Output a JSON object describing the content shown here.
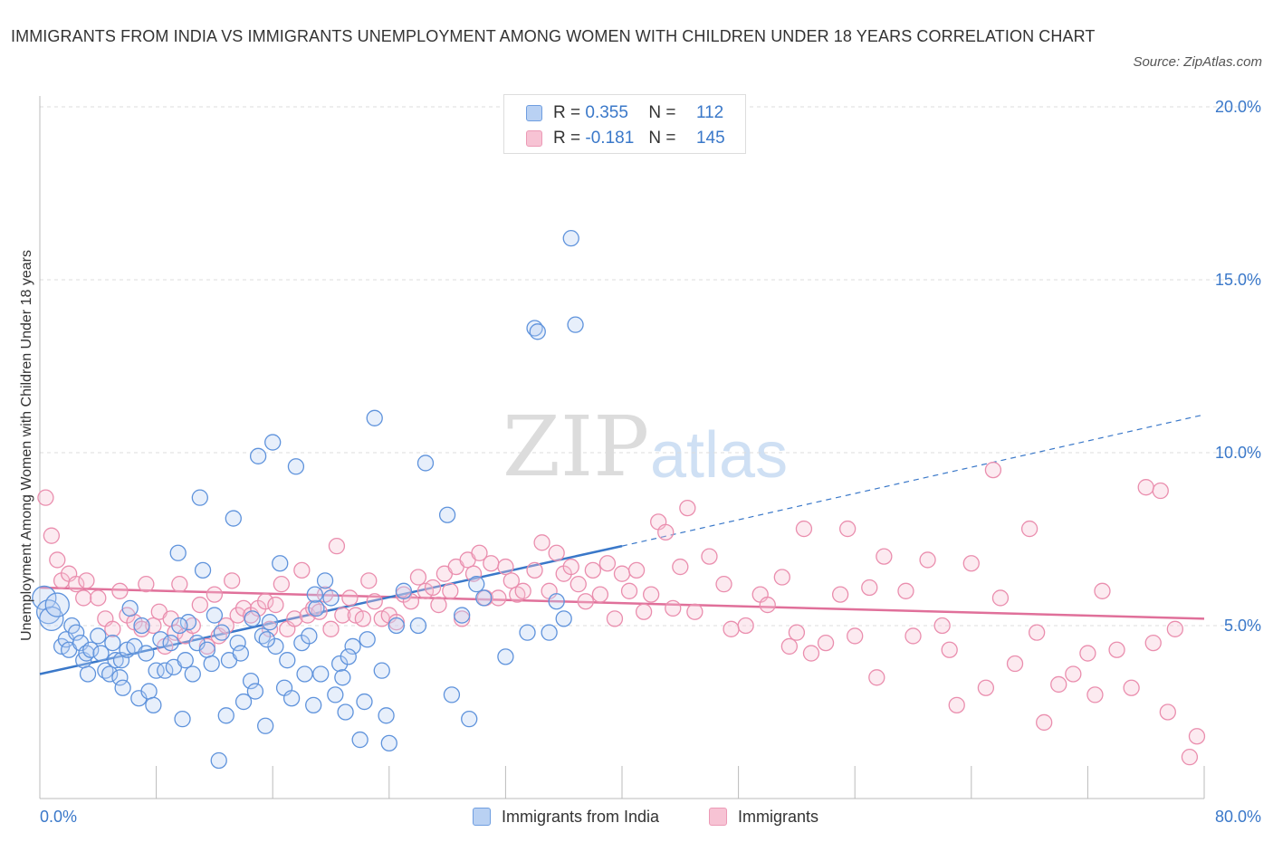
{
  "title": "IMMIGRANTS FROM INDIA VS IMMIGRANTS UNEMPLOYMENT AMONG WOMEN WITH CHILDREN UNDER 18 YEARS CORRELATION CHART",
  "source": "Source: ZipAtlas.com",
  "watermark": {
    "zip": "ZIP",
    "atlas": "atlas"
  },
  "colors": {
    "blue": "#3a78c9",
    "blue_fill": "#b9d1f3",
    "pink": "#e0709a",
    "pink_fill": "#f7c3d4"
  },
  "chart_data": {
    "type": "scatter",
    "ylabel": "Unemployment Among Women with Children Under 18 years",
    "xlim": [
      0,
      80
    ],
    "ylim": [
      0,
      20
    ],
    "x_tick_labels": {
      "left": "0.0%",
      "right": "80.0%"
    },
    "y_ticks": [
      5,
      10,
      15,
      20
    ],
    "y_tick_labels": [
      "5.0%",
      "10.0%",
      "15.0%",
      "20.0%"
    ],
    "legend": {
      "placement": "top-center",
      "entries": [
        {
          "r_label": "R =",
          "r": "0.355",
          "n_label": "N =",
          "n": "112"
        },
        {
          "r_label": "R =",
          "r": "-0.181",
          "n_label": "N =",
          "n": "145"
        }
      ]
    },
    "series": [
      {
        "name": "Immigrants from India",
        "trend": {
          "x0": 0,
          "y0": 3.6,
          "x1": 40,
          "y1": 7.3,
          "dash_x1": 80,
          "dash_y1": 11.1
        },
        "points": [
          [
            0.3,
            5.8
          ],
          [
            0.6,
            5.4
          ],
          [
            0.8,
            5.2
          ],
          [
            1.2,
            5.6
          ],
          [
            1.5,
            4.4
          ],
          [
            1.8,
            4.6
          ],
          [
            2.0,
            4.3
          ],
          [
            2.2,
            5.0
          ],
          [
            2.5,
            4.8
          ],
          [
            2.8,
            4.5
          ],
          [
            3.0,
            4.0
          ],
          [
            3.2,
            4.2
          ],
          [
            3.3,
            3.6
          ],
          [
            3.5,
            4.3
          ],
          [
            4.0,
            4.7
          ],
          [
            4.2,
            4.2
          ],
          [
            4.5,
            3.7
          ],
          [
            4.8,
            3.6
          ],
          [
            5.0,
            4.5
          ],
          [
            5.2,
            4.0
          ],
          [
            5.5,
            3.5
          ],
          [
            5.6,
            4.0
          ],
          [
            6.0,
            4.3
          ],
          [
            6.2,
            5.5
          ],
          [
            6.5,
            4.4
          ],
          [
            6.8,
            2.9
          ],
          [
            7.0,
            5.0
          ],
          [
            7.3,
            4.2
          ],
          [
            7.5,
            3.1
          ],
          [
            7.8,
            2.7
          ],
          [
            8.0,
            3.7
          ],
          [
            8.3,
            4.6
          ],
          [
            8.6,
            3.7
          ],
          [
            9.0,
            4.5
          ],
          [
            9.2,
            3.8
          ],
          [
            9.5,
            7.1
          ],
          [
            9.8,
            2.3
          ],
          [
            10.0,
            4.0
          ],
          [
            10.2,
            5.1
          ],
          [
            10.5,
            3.6
          ],
          [
            10.8,
            4.5
          ],
          [
            11.0,
            8.7
          ],
          [
            11.2,
            6.6
          ],
          [
            11.5,
            4.3
          ],
          [
            11.8,
            3.9
          ],
          [
            12.0,
            5.3
          ],
          [
            12.3,
            1.1
          ],
          [
            12.5,
            4.8
          ],
          [
            12.8,
            2.4
          ],
          [
            13.0,
            4.0
          ],
          [
            13.3,
            8.1
          ],
          [
            13.6,
            4.5
          ],
          [
            13.8,
            4.2
          ],
          [
            14.0,
            2.8
          ],
          [
            14.5,
            3.4
          ],
          [
            14.8,
            3.1
          ],
          [
            15.0,
            9.9
          ],
          [
            15.3,
            4.7
          ],
          [
            15.5,
            2.1
          ],
          [
            15.8,
            5.1
          ],
          [
            16.0,
            10.3
          ],
          [
            16.2,
            4.4
          ],
          [
            16.5,
            6.8
          ],
          [
            16.8,
            3.2
          ],
          [
            17.0,
            4.0
          ],
          [
            17.3,
            2.9
          ],
          [
            17.6,
            9.6
          ],
          [
            18.0,
            4.5
          ],
          [
            18.2,
            3.6
          ],
          [
            18.5,
            4.7
          ],
          [
            18.8,
            2.7
          ],
          [
            19.0,
            5.5
          ],
          [
            19.3,
            3.6
          ],
          [
            19.6,
            6.3
          ],
          [
            20.0,
            5.8
          ],
          [
            20.3,
            3.0
          ],
          [
            20.6,
            3.9
          ],
          [
            20.8,
            3.5
          ],
          [
            21.0,
            2.5
          ],
          [
            21.5,
            4.4
          ],
          [
            22.0,
            1.7
          ],
          [
            22.3,
            2.8
          ],
          [
            22.5,
            4.6
          ],
          [
            23.0,
            11.0
          ],
          [
            23.5,
            3.7
          ],
          [
            23.8,
            2.4
          ],
          [
            24.0,
            1.6
          ],
          [
            24.5,
            5.0
          ],
          [
            26.5,
            9.7
          ],
          [
            28.0,
            8.2
          ],
          [
            28.3,
            3.0
          ],
          [
            29.0,
            5.3
          ],
          [
            29.5,
            2.3
          ],
          [
            30.0,
            6.2
          ],
          [
            32.0,
            4.1
          ],
          [
            33.5,
            4.8
          ],
          [
            34.0,
            13.6
          ],
          [
            34.2,
            13.5
          ],
          [
            35.5,
            5.7
          ],
          [
            36.5,
            16.2
          ],
          [
            36.8,
            13.7
          ],
          [
            35.0,
            4.8
          ],
          [
            36.0,
            5.2
          ],
          [
            30.5,
            5.8
          ],
          [
            26.0,
            5.0
          ],
          [
            25.0,
            6.0
          ],
          [
            21.2,
            4.1
          ],
          [
            18.9,
            5.9
          ],
          [
            15.6,
            4.6
          ],
          [
            14.6,
            5.2
          ],
          [
            9.6,
            5.0
          ],
          [
            5.7,
            3.2
          ]
        ]
      },
      {
        "name": "Immigrants",
        "trend": {
          "x0": 0,
          "y0": 6.1,
          "x1": 80,
          "y1": 5.2
        },
        "points": [
          [
            0.4,
            8.7
          ],
          [
            0.8,
            7.6
          ],
          [
            1.2,
            6.9
          ],
          [
            1.5,
            6.3
          ],
          [
            2.0,
            6.5
          ],
          [
            2.5,
            6.2
          ],
          [
            3.0,
            5.8
          ],
          [
            3.2,
            6.3
          ],
          [
            4.0,
            5.8
          ],
          [
            4.5,
            5.2
          ],
          [
            5.0,
            4.9
          ],
          [
            5.5,
            6.0
          ],
          [
            6.0,
            5.3
          ],
          [
            6.5,
            5.1
          ],
          [
            7.0,
            4.9
          ],
          [
            7.3,
            6.2
          ],
          [
            7.8,
            5.0
          ],
          [
            8.2,
            5.4
          ],
          [
            8.6,
            4.4
          ],
          [
            9.0,
            5.2
          ],
          [
            9.3,
            4.8
          ],
          [
            9.6,
            6.2
          ],
          [
            10.0,
            4.7
          ],
          [
            10.5,
            5.0
          ],
          [
            11.0,
            5.6
          ],
          [
            11.5,
            4.4
          ],
          [
            12.0,
            5.9
          ],
          [
            12.3,
            4.7
          ],
          [
            12.8,
            5.0
          ],
          [
            13.2,
            6.3
          ],
          [
            13.6,
            5.3
          ],
          [
            14.0,
            5.5
          ],
          [
            14.5,
            5.3
          ],
          [
            15.0,
            5.5
          ],
          [
            15.5,
            5.7
          ],
          [
            15.8,
            4.9
          ],
          [
            16.2,
            5.6
          ],
          [
            16.6,
            6.2
          ],
          [
            17.0,
            4.9
          ],
          [
            17.5,
            5.2
          ],
          [
            18.0,
            6.6
          ],
          [
            18.4,
            5.3
          ],
          [
            18.8,
            5.5
          ],
          [
            19.2,
            5.4
          ],
          [
            19.6,
            5.9
          ],
          [
            20.0,
            4.9
          ],
          [
            20.4,
            7.3
          ],
          [
            20.8,
            5.3
          ],
          [
            21.3,
            5.8
          ],
          [
            21.7,
            5.3
          ],
          [
            22.2,
            5.2
          ],
          [
            22.6,
            6.3
          ],
          [
            23.0,
            5.7
          ],
          [
            23.5,
            5.2
          ],
          [
            24.0,
            5.3
          ],
          [
            24.5,
            5.1
          ],
          [
            25.0,
            5.9
          ],
          [
            25.5,
            5.7
          ],
          [
            26.0,
            6.4
          ],
          [
            26.5,
            6.0
          ],
          [
            27.0,
            6.1
          ],
          [
            27.4,
            5.6
          ],
          [
            27.8,
            6.5
          ],
          [
            28.2,
            6.0
          ],
          [
            28.6,
            6.7
          ],
          [
            29.0,
            5.2
          ],
          [
            29.4,
            6.9
          ],
          [
            29.8,
            6.5
          ],
          [
            30.2,
            7.1
          ],
          [
            30.6,
            5.8
          ],
          [
            31.0,
            6.8
          ],
          [
            31.5,
            5.8
          ],
          [
            32.0,
            6.7
          ],
          [
            32.4,
            6.3
          ],
          [
            32.8,
            5.9
          ],
          [
            33.2,
            6.0
          ],
          [
            34.0,
            6.6
          ],
          [
            34.5,
            7.4
          ],
          [
            35.0,
            6.0
          ],
          [
            35.5,
            7.1
          ],
          [
            36.0,
            6.5
          ],
          [
            36.5,
            6.7
          ],
          [
            37.0,
            6.2
          ],
          [
            37.5,
            5.7
          ],
          [
            38.0,
            6.6
          ],
          [
            38.5,
            5.9
          ],
          [
            39.0,
            6.8
          ],
          [
            39.5,
            5.2
          ],
          [
            40.0,
            6.5
          ],
          [
            40.5,
            6.0
          ],
          [
            41.0,
            6.6
          ],
          [
            41.5,
            5.4
          ],
          [
            42.0,
            5.9
          ],
          [
            42.5,
            8.0
          ],
          [
            43.0,
            7.7
          ],
          [
            43.5,
            5.5
          ],
          [
            44.0,
            6.7
          ],
          [
            44.5,
            8.4
          ],
          [
            45.0,
            5.4
          ],
          [
            46.0,
            7.0
          ],
          [
            47.0,
            6.2
          ],
          [
            47.5,
            4.9
          ],
          [
            48.5,
            5.0
          ],
          [
            49.5,
            5.9
          ],
          [
            50.0,
            5.6
          ],
          [
            51.0,
            6.4
          ],
          [
            51.5,
            4.4
          ],
          [
            52.5,
            7.8
          ],
          [
            53.0,
            4.2
          ],
          [
            54.0,
            4.5
          ],
          [
            55.0,
            5.9
          ],
          [
            55.5,
            7.8
          ],
          [
            56.0,
            4.7
          ],
          [
            57.0,
            6.1
          ],
          [
            57.5,
            3.5
          ],
          [
            58.0,
            7.0
          ],
          [
            59.5,
            6.0
          ],
          [
            60.0,
            4.7
          ],
          [
            61.0,
            6.9
          ],
          [
            62.0,
            5.0
          ],
          [
            62.5,
            4.3
          ],
          [
            63.0,
            2.7
          ],
          [
            64.0,
            6.8
          ],
          [
            65.0,
            3.2
          ],
          [
            66.0,
            5.8
          ],
          [
            67.0,
            3.9
          ],
          [
            68.0,
            7.8
          ],
          [
            68.5,
            4.8
          ],
          [
            69.0,
            2.2
          ],
          [
            70.0,
            3.3
          ],
          [
            71.0,
            3.6
          ],
          [
            72.0,
            4.2
          ],
          [
            72.5,
            3.0
          ],
          [
            73.0,
            6.0
          ],
          [
            74.0,
            4.3
          ],
          [
            75.0,
            3.2
          ],
          [
            76.0,
            9.0
          ],
          [
            76.5,
            4.5
          ],
          [
            77.0,
            8.9
          ],
          [
            77.5,
            2.5
          ],
          [
            78.0,
            4.9
          ],
          [
            79.0,
            1.2
          ],
          [
            79.5,
            1.8
          ],
          [
            65.5,
            9.5
          ],
          [
            52.0,
            4.8
          ]
        ]
      }
    ]
  },
  "bottom_legend": [
    "Immigrants from India",
    "Immigrants"
  ]
}
